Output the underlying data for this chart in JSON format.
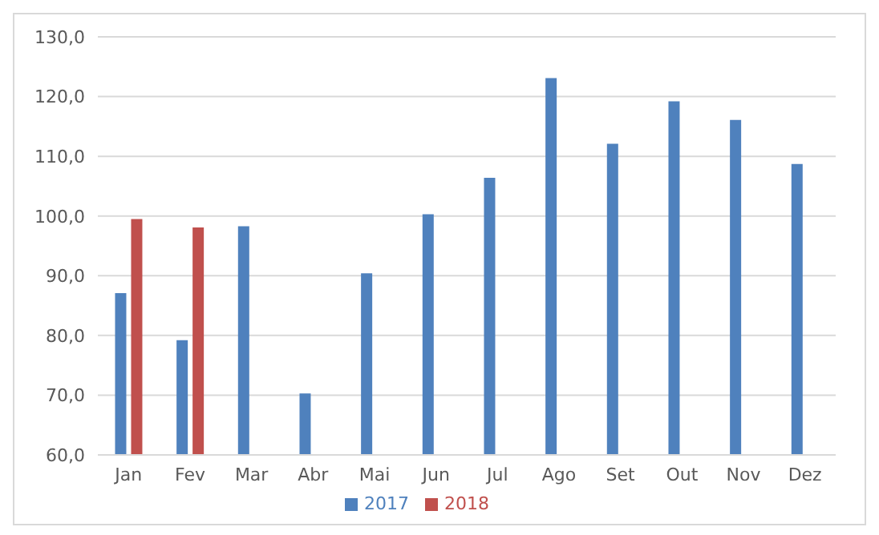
{
  "chart_data": {
    "type": "bar",
    "categories": [
      "Jan",
      "Fev",
      "Mar",
      "Abr",
      "Mai",
      "Jun",
      "Jul",
      "Ago",
      "Set",
      "Out",
      "Nov",
      "Dez"
    ],
    "series": [
      {
        "name": "2017",
        "color": "#4f81bd",
        "values": [
          87.1,
          79.2,
          98.3,
          70.3,
          90.4,
          100.3,
          106.4,
          123.1,
          112.1,
          119.2,
          116.1,
          108.7
        ]
      },
      {
        "name": "2018",
        "color": "#c0504d",
        "values": [
          99.5,
          98.1,
          null,
          null,
          null,
          null,
          null,
          null,
          null,
          null,
          null,
          null
        ]
      }
    ],
    "ylim": [
      60,
      130
    ],
    "yticks": [
      {
        "value": 60,
        "label": "60,0"
      },
      {
        "value": 70,
        "label": "70,0"
      },
      {
        "value": 80,
        "label": "80,0"
      },
      {
        "value": 90,
        "label": "90,0"
      },
      {
        "value": 100,
        "label": "100,0"
      },
      {
        "value": 110,
        "label": "110,0"
      },
      {
        "value": 120,
        "label": "120,0"
      },
      {
        "value": 130,
        "label": "130,0"
      }
    ],
    "grid": "y",
    "legend": "bottom"
  }
}
